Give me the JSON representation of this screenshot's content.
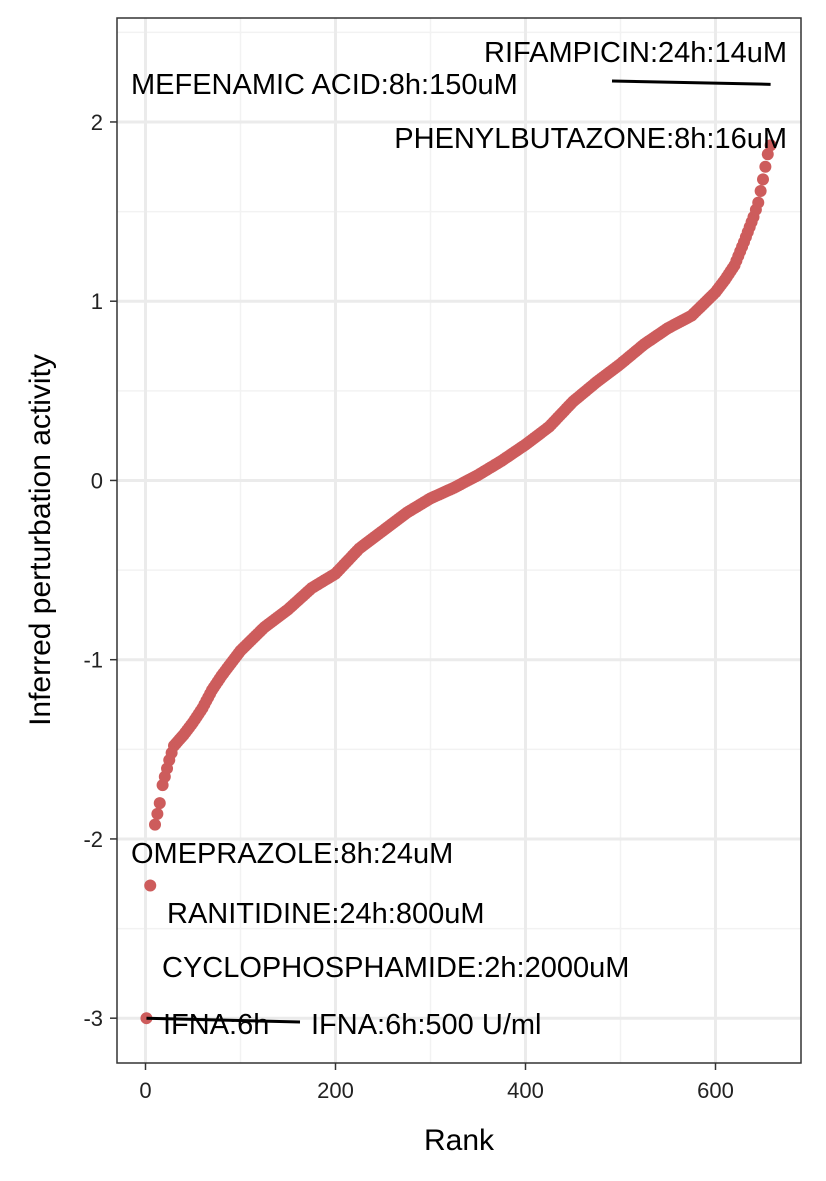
{
  "chart_data": {
    "type": "scatter",
    "xlabel": "Rank",
    "ylabel": "Inferred perturbation activity",
    "xlim": [
      -30,
      690
    ],
    "ylim": [
      -3.25,
      2.58
    ],
    "x_ticks": [
      "0",
      "200",
      "400",
      "600"
    ],
    "y_ticks": [
      "2",
      "1",
      "0",
      "-1",
      "-2",
      "-3"
    ],
    "grid": true,
    "point_color": "#CD5C5C",
    "series": [
      {
        "x": [
          1,
          5,
          10,
          15,
          18,
          25,
          30,
          40,
          50,
          60,
          70,
          80,
          90,
          100,
          125,
          150,
          175,
          200,
          225,
          250,
          275,
          300,
          325,
          350,
          375,
          400,
          425,
          450,
          475,
          500,
          525,
          550,
          575,
          600,
          610,
          620,
          630,
          640,
          645,
          650,
          655,
          658
        ],
        "y": [
          -3.0,
          -2.26,
          -1.92,
          -1.8,
          -1.7,
          -1.56,
          -1.48,
          -1.42,
          -1.35,
          -1.27,
          -1.17,
          -1.09,
          -1.02,
          -0.95,
          -0.82,
          -0.72,
          -0.6,
          -0.52,
          -0.38,
          -0.28,
          -0.18,
          -0.1,
          -0.04,
          0.03,
          0.11,
          0.2,
          0.3,
          0.44,
          0.55,
          0.65,
          0.76,
          0.85,
          0.92,
          1.05,
          1.12,
          1.2,
          1.33,
          1.47,
          1.55,
          1.68,
          1.82,
          1.87
        ]
      }
    ],
    "annotations": [
      {
        "text": "RIFAMPICIN:24h:14uM",
        "x": 655,
        "y": 2.21
      },
      {
        "text": "MEFENAMIC ACID:8h:150uM",
        "x": 658,
        "y": 2.21
      },
      {
        "text": "PHENYLBUTAZONE:8h:16uM",
        "x": 655,
        "y": 1.82
      },
      {
        "text": "OMEPRAZOLE:8h:24uM",
        "x": 5,
        "y": -2.26
      },
      {
        "text": "RANITIDINE:24h:800uM",
        "x": 1,
        "y": -3.0
      },
      {
        "text": "CYCLOPHOSPHAMIDE:2h:2000uM",
        "x": 1,
        "y": -3.0
      },
      {
        "text": "IFNA:6h",
        "x": 1,
        "y": -3.0
      },
      {
        "text": "IFNA:6h:500 U/ml",
        "x": 1,
        "y": -3.0
      }
    ]
  }
}
